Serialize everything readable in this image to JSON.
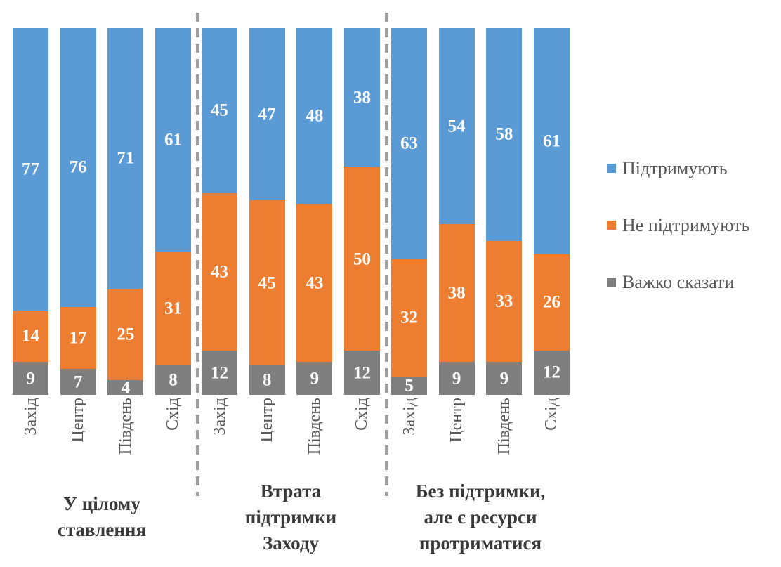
{
  "chart_data": {
    "type": "bar",
    "variant": "stacked-column-100",
    "value_unit": "percent",
    "ylim": [
      0,
      100
    ],
    "grid": false,
    "axes_visible": false,
    "legend_position": "right",
    "title": "",
    "categories": [
      "Захід",
      "Центр",
      "Південь",
      "Схід"
    ],
    "series": [
      {
        "name": "Підтримують",
        "color": "#5B9BD5"
      },
      {
        "name": "Не підтримують",
        "color": "#ED7D31"
      },
      {
        "name": "Важко сказати",
        "color": "#7F7F7F"
      }
    ],
    "value_order": "rows = categories (Захід, Центр, Південь, Схід); cols = series (Підтримують, Не підтримують, Важко сказати)",
    "groups": [
      {
        "title": "У цілому ставлення",
        "title_lines": [
          "У цілому",
          "ставлення"
        ],
        "values": [
          [
            77,
            14,
            9
          ],
          [
            76,
            17,
            7
          ],
          [
            71,
            25,
            4
          ],
          [
            61,
            31,
            8
          ]
        ]
      },
      {
        "title": "Втрата підтримки Заходу",
        "title_lines": [
          "Втрата",
          "підтримки",
          "Заходу"
        ],
        "values": [
          [
            45,
            43,
            12
          ],
          [
            47,
            45,
            8
          ],
          [
            48,
            43,
            9
          ],
          [
            38,
            50,
            12
          ]
        ]
      },
      {
        "title": "Без підтримки, але є ресурси протриматися",
        "title_lines": [
          "Без підтримки,",
          "але є ресурси",
          "протриматися"
        ],
        "values": [
          [
            63,
            32,
            5
          ],
          [
            54,
            38,
            9
          ],
          [
            58,
            33,
            9
          ],
          [
            61,
            26,
            12
          ]
        ]
      }
    ]
  }
}
